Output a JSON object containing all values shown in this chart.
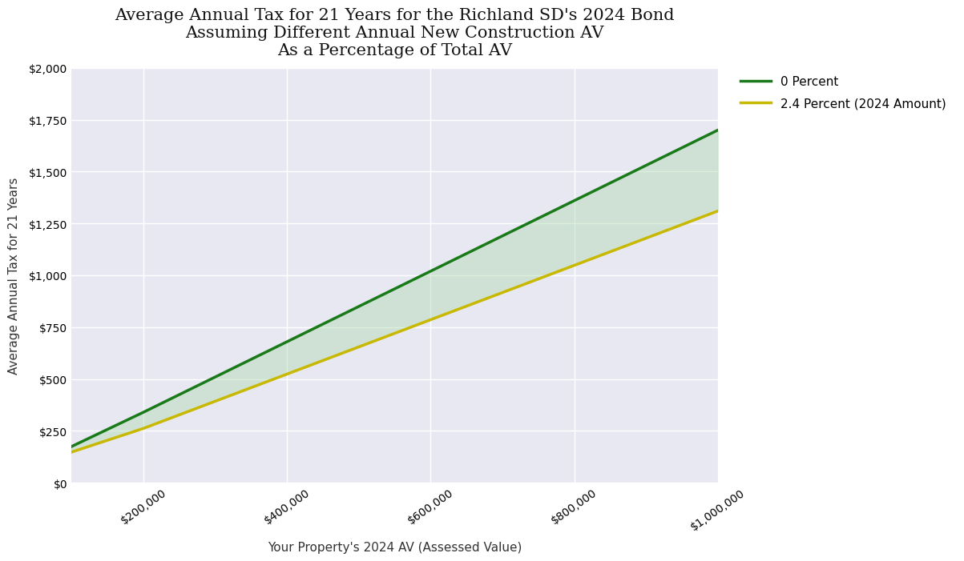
{
  "title_line1": "Average Annual Tax for 21 Years for the Richland SD's 2024 Bond",
  "title_line2": "Assuming Different Annual New Construction AV",
  "title_line3": "As a Percentage of Total AV",
  "xlabel": "Your Property's 2024 AV (Assessed Value)",
  "ylabel": "Average Annual Tax for 21 Years",
  "x_values": [
    100000,
    200000,
    300000,
    400000,
    500000,
    600000,
    700000,
    800000,
    900000,
    1000000
  ],
  "green_line_values": [
    175,
    340,
    510,
    680,
    850,
    1020,
    1190,
    1360,
    1530,
    1700
  ],
  "yellow_line_values": [
    148,
    262,
    393,
    524,
    655,
    786,
    917,
    1048,
    1179,
    1310
  ],
  "green_color": "#1a7a1a",
  "yellow_color": "#c8b800",
  "fill_color": "#a8d8a8",
  "fill_alpha": 0.4,
  "fig_background_color": "#ffffff",
  "plot_bg_color": "#e8e8f2",
  "legend_label_green": "0 Percent",
  "legend_label_yellow": "2.4 Percent (2024 Amount)",
  "xlim": [
    100000,
    1000000
  ],
  "ylim": [
    0,
    2000
  ],
  "ytick_values": [
    0,
    250,
    500,
    750,
    1000,
    1250,
    1500,
    1750,
    2000
  ],
  "xtick_values": [
    200000,
    400000,
    600000,
    800000,
    1000000
  ],
  "title_fontsize": 15,
  "axis_label_fontsize": 11,
  "tick_fontsize": 10,
  "legend_fontsize": 11,
  "line_width": 2.5,
  "grid_color": "#ffffff",
  "grid_alpha": 1.0,
  "grid_linewidth": 1.0
}
